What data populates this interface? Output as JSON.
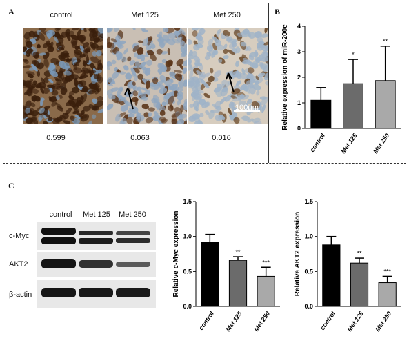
{
  "figure": {
    "panels": {
      "A": {
        "letter": "A",
        "images": [
          {
            "label": "control",
            "value": "0.599"
          },
          {
            "label": "Met 125",
            "value": "0.063"
          },
          {
            "label": "Met 250",
            "value": "0.016"
          }
        ],
        "scale_bar": "100μm"
      },
      "B": {
        "letter": "B"
      },
      "C": {
        "letter": "C",
        "blot_columns": [
          "control",
          "Met 125",
          "Met 250"
        ],
        "blot_rows": [
          "c-Myc",
          "AKT2",
          "β-actin"
        ]
      }
    }
  },
  "chart_data": [
    {
      "id": "B",
      "type": "bar",
      "categories": [
        "control",
        "Met 125",
        "Met 250"
      ],
      "values": [
        1.1,
        1.75,
        1.87
      ],
      "errors": [
        0.5,
        0.95,
        1.35
      ],
      "significance": [
        "",
        "*",
        "**"
      ],
      "colors": [
        "#000000",
        "#6b6b6b",
        "#a9a9a9"
      ],
      "ylabel": "Relative expression of miR-200c",
      "ylim": [
        0,
        4
      ],
      "yticks": [
        "0",
        "1",
        "2",
        "3",
        "4"
      ],
      "ytick_values": [
        0,
        1,
        2,
        3,
        4
      ]
    },
    {
      "id": "C1",
      "type": "bar",
      "categories": [
        "control",
        "Met 125",
        "Met 250"
      ],
      "values": [
        0.92,
        0.66,
        0.43
      ],
      "errors": [
        0.11,
        0.05,
        0.13
      ],
      "significance": [
        "",
        "**",
        "***"
      ],
      "colors": [
        "#000000",
        "#6b6b6b",
        "#a9a9a9"
      ],
      "ylabel": "Relative c-Myc expression",
      "ylim": [
        0,
        1.5
      ],
      "yticks": [
        "0.0",
        "0.5",
        "1.0",
        "1.5"
      ],
      "ytick_values": [
        0,
        0.5,
        1.0,
        1.5
      ]
    },
    {
      "id": "C2",
      "type": "bar",
      "categories": [
        "control",
        "Met 125",
        "Met 250"
      ],
      "values": [
        0.88,
        0.62,
        0.34
      ],
      "errors": [
        0.12,
        0.07,
        0.09
      ],
      "significance": [
        "",
        "**",
        "***"
      ],
      "colors": [
        "#000000",
        "#6b6b6b",
        "#a9a9a9"
      ],
      "ylabel": "Relative AKT2 expression",
      "ylim": [
        0,
        1.5
      ],
      "yticks": [
        "0.0",
        "0.5",
        "1.0",
        "1.5"
      ],
      "ytick_values": [
        0,
        0.5,
        1.0,
        1.5
      ]
    }
  ]
}
